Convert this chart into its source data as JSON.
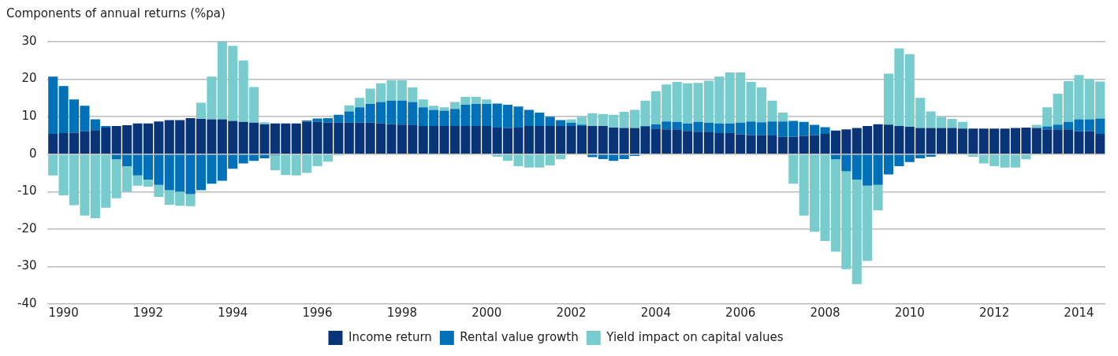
{
  "chart_data": {
    "type": "bar",
    "ylabel": "Components of annual returns (%pa)",
    "stacked": true,
    "grid": "y",
    "legend": "bottom",
    "ylim": [
      -40,
      30
    ],
    "yticks": [
      -40,
      -30,
      -20,
      -10,
      0,
      10,
      20,
      30
    ],
    "categories": [
      null,
      "1990",
      null,
      null,
      null,
      null,
      null,
      null,
      null,
      "1992",
      null,
      null,
      null,
      null,
      null,
      null,
      null,
      "1994",
      null,
      null,
      null,
      null,
      null,
      null,
      null,
      "1996",
      null,
      null,
      null,
      null,
      null,
      null,
      null,
      "1998",
      null,
      null,
      null,
      null,
      null,
      null,
      null,
      "2000",
      null,
      null,
      null,
      null,
      null,
      null,
      null,
      "2002",
      null,
      null,
      null,
      null,
      null,
      null,
      null,
      "2004",
      null,
      null,
      null,
      null,
      null,
      null,
      null,
      "2006",
      null,
      null,
      null,
      null,
      null,
      null,
      null,
      "2008",
      null,
      null,
      null,
      null,
      null,
      null,
      null,
      "2010",
      null,
      null,
      null,
      null,
      null,
      null,
      null,
      "2012",
      null,
      null,
      null,
      null,
      null,
      null,
      null,
      "2014",
      null,
      null
    ],
    "series": [
      {
        "name": "Income return",
        "color": "#0a3478",
        "values": [
          5.4,
          5.6,
          5.7,
          6.1,
          6.4,
          7.1,
          7.5,
          7.7,
          8.2,
          8.2,
          8.7,
          9.1,
          9.1,
          9.6,
          9.4,
          9.3,
          9.3,
          8.9,
          8.6,
          8.4,
          8,
          8.2,
          8.2,
          8.2,
          8.6,
          8.6,
          8.4,
          8.4,
          8.4,
          8.4,
          8.4,
          8.2,
          8,
          7.9,
          7.7,
          7.5,
          7.5,
          7.5,
          7.5,
          7.5,
          7.5,
          7.5,
          7.1,
          7,
          7.1,
          7.5,
          7.5,
          7.5,
          7.5,
          7.5,
          7.5,
          7.5,
          7.5,
          7.1,
          7,
          7,
          7.3,
          6.8,
          6.6,
          6.6,
          6.2,
          6,
          6,
          5.6,
          5.6,
          5.3,
          5.1,
          5.1,
          5,
          4.6,
          4.6,
          4.9,
          5.1,
          5.4,
          6.3,
          6.6,
          7,
          7.5,
          8,
          7.9,
          7.5,
          7.3,
          7,
          7,
          7,
          7,
          6.8,
          6.8,
          6.8,
          6.8,
          6.8,
          7,
          7.1,
          7,
          6.6,
          6.6,
          6.6,
          6.1,
          6.1,
          5.4
        ]
      },
      {
        "name": "Rental value growth",
        "color": "#0071b9",
        "values": [
          15.3,
          12.6,
          8.9,
          6.8,
          2.9,
          0.4,
          -1.4,
          -3.2,
          -5.7,
          -6.8,
          -8.2,
          -9.6,
          -10,
          -10.7,
          -9.6,
          -7.9,
          -7.1,
          -3.9,
          -2.5,
          -1.8,
          -1.1,
          -0.3,
          0,
          0,
          0.4,
          0.9,
          1.2,
          2.1,
          3,
          4.1,
          5,
          5.7,
          6.3,
          6.4,
          6.2,
          5,
          4.3,
          4.1,
          4.6,
          5.7,
          5.9,
          5.9,
          6.4,
          6.2,
          5.6,
          4.3,
          3.6,
          2.5,
          1.6,
          0.9,
          0.4,
          -0.8,
          -1.3,
          -1.8,
          -1.3,
          -0.5,
          0.2,
          1.2,
          2.1,
          2,
          2,
          2.6,
          2.4,
          2.6,
          2.6,
          3.1,
          3.6,
          3.4,
          3.7,
          4.1,
          4.3,
          3.7,
          2.7,
          1.8,
          -1.4,
          -4.6,
          -6.8,
          -8.4,
          -8.2,
          -5.4,
          -3.2,
          -2.1,
          -1.1,
          -0.7,
          0,
          0,
          0,
          0,
          0,
          0,
          0,
          0,
          0,
          0,
          0.8,
          1.3,
          2,
          3.2,
          3.2,
          4.1
        ]
      },
      {
        "name": "Yield impact on capital values",
        "color": "#78ccce",
        "values": [
          -5.7,
          -11,
          -13.6,
          -16.4,
          -17.1,
          -14.3,
          -10.4,
          -6.8,
          -2.7,
          -1.9,
          -3.2,
          -3.9,
          -3.8,
          -3.2,
          4.3,
          11.4,
          20.7,
          20,
          16.4,
          9.5,
          0.5,
          -4,
          -5.6,
          -5.7,
          -5,
          -3.2,
          -2,
          -0.3,
          1.6,
          2.5,
          4.1,
          5,
          5.4,
          5.4,
          3.9,
          2.1,
          1.1,
          0.9,
          1.8,
          2.1,
          1.9,
          1.2,
          -0.7,
          -1.8,
          -3.2,
          -3.6,
          -3.6,
          -3,
          -1.4,
          0.9,
          2.1,
          3.4,
          3.2,
          3.4,
          4.3,
          4.8,
          6.8,
          8.8,
          9.9,
          10.7,
          10.7,
          10.4,
          11.2,
          12.5,
          13.6,
          13.4,
          10.6,
          9.3,
          5.6,
          2.4,
          -7.9,
          -16.4,
          -20.7,
          -23.2,
          -24.6,
          -26.1,
          -27.9,
          -20.1,
          -6.8,
          13.6,
          20.7,
          19.4,
          8,
          4.4,
          2.9,
          2.4,
          1.8,
          -0.7,
          -2.5,
          -3.2,
          -3.6,
          -3.6,
          -1.4,
          0.8,
          5.1,
          8.2,
          10.9,
          11.8,
          10.7,
          9.9
        ]
      }
    ]
  }
}
